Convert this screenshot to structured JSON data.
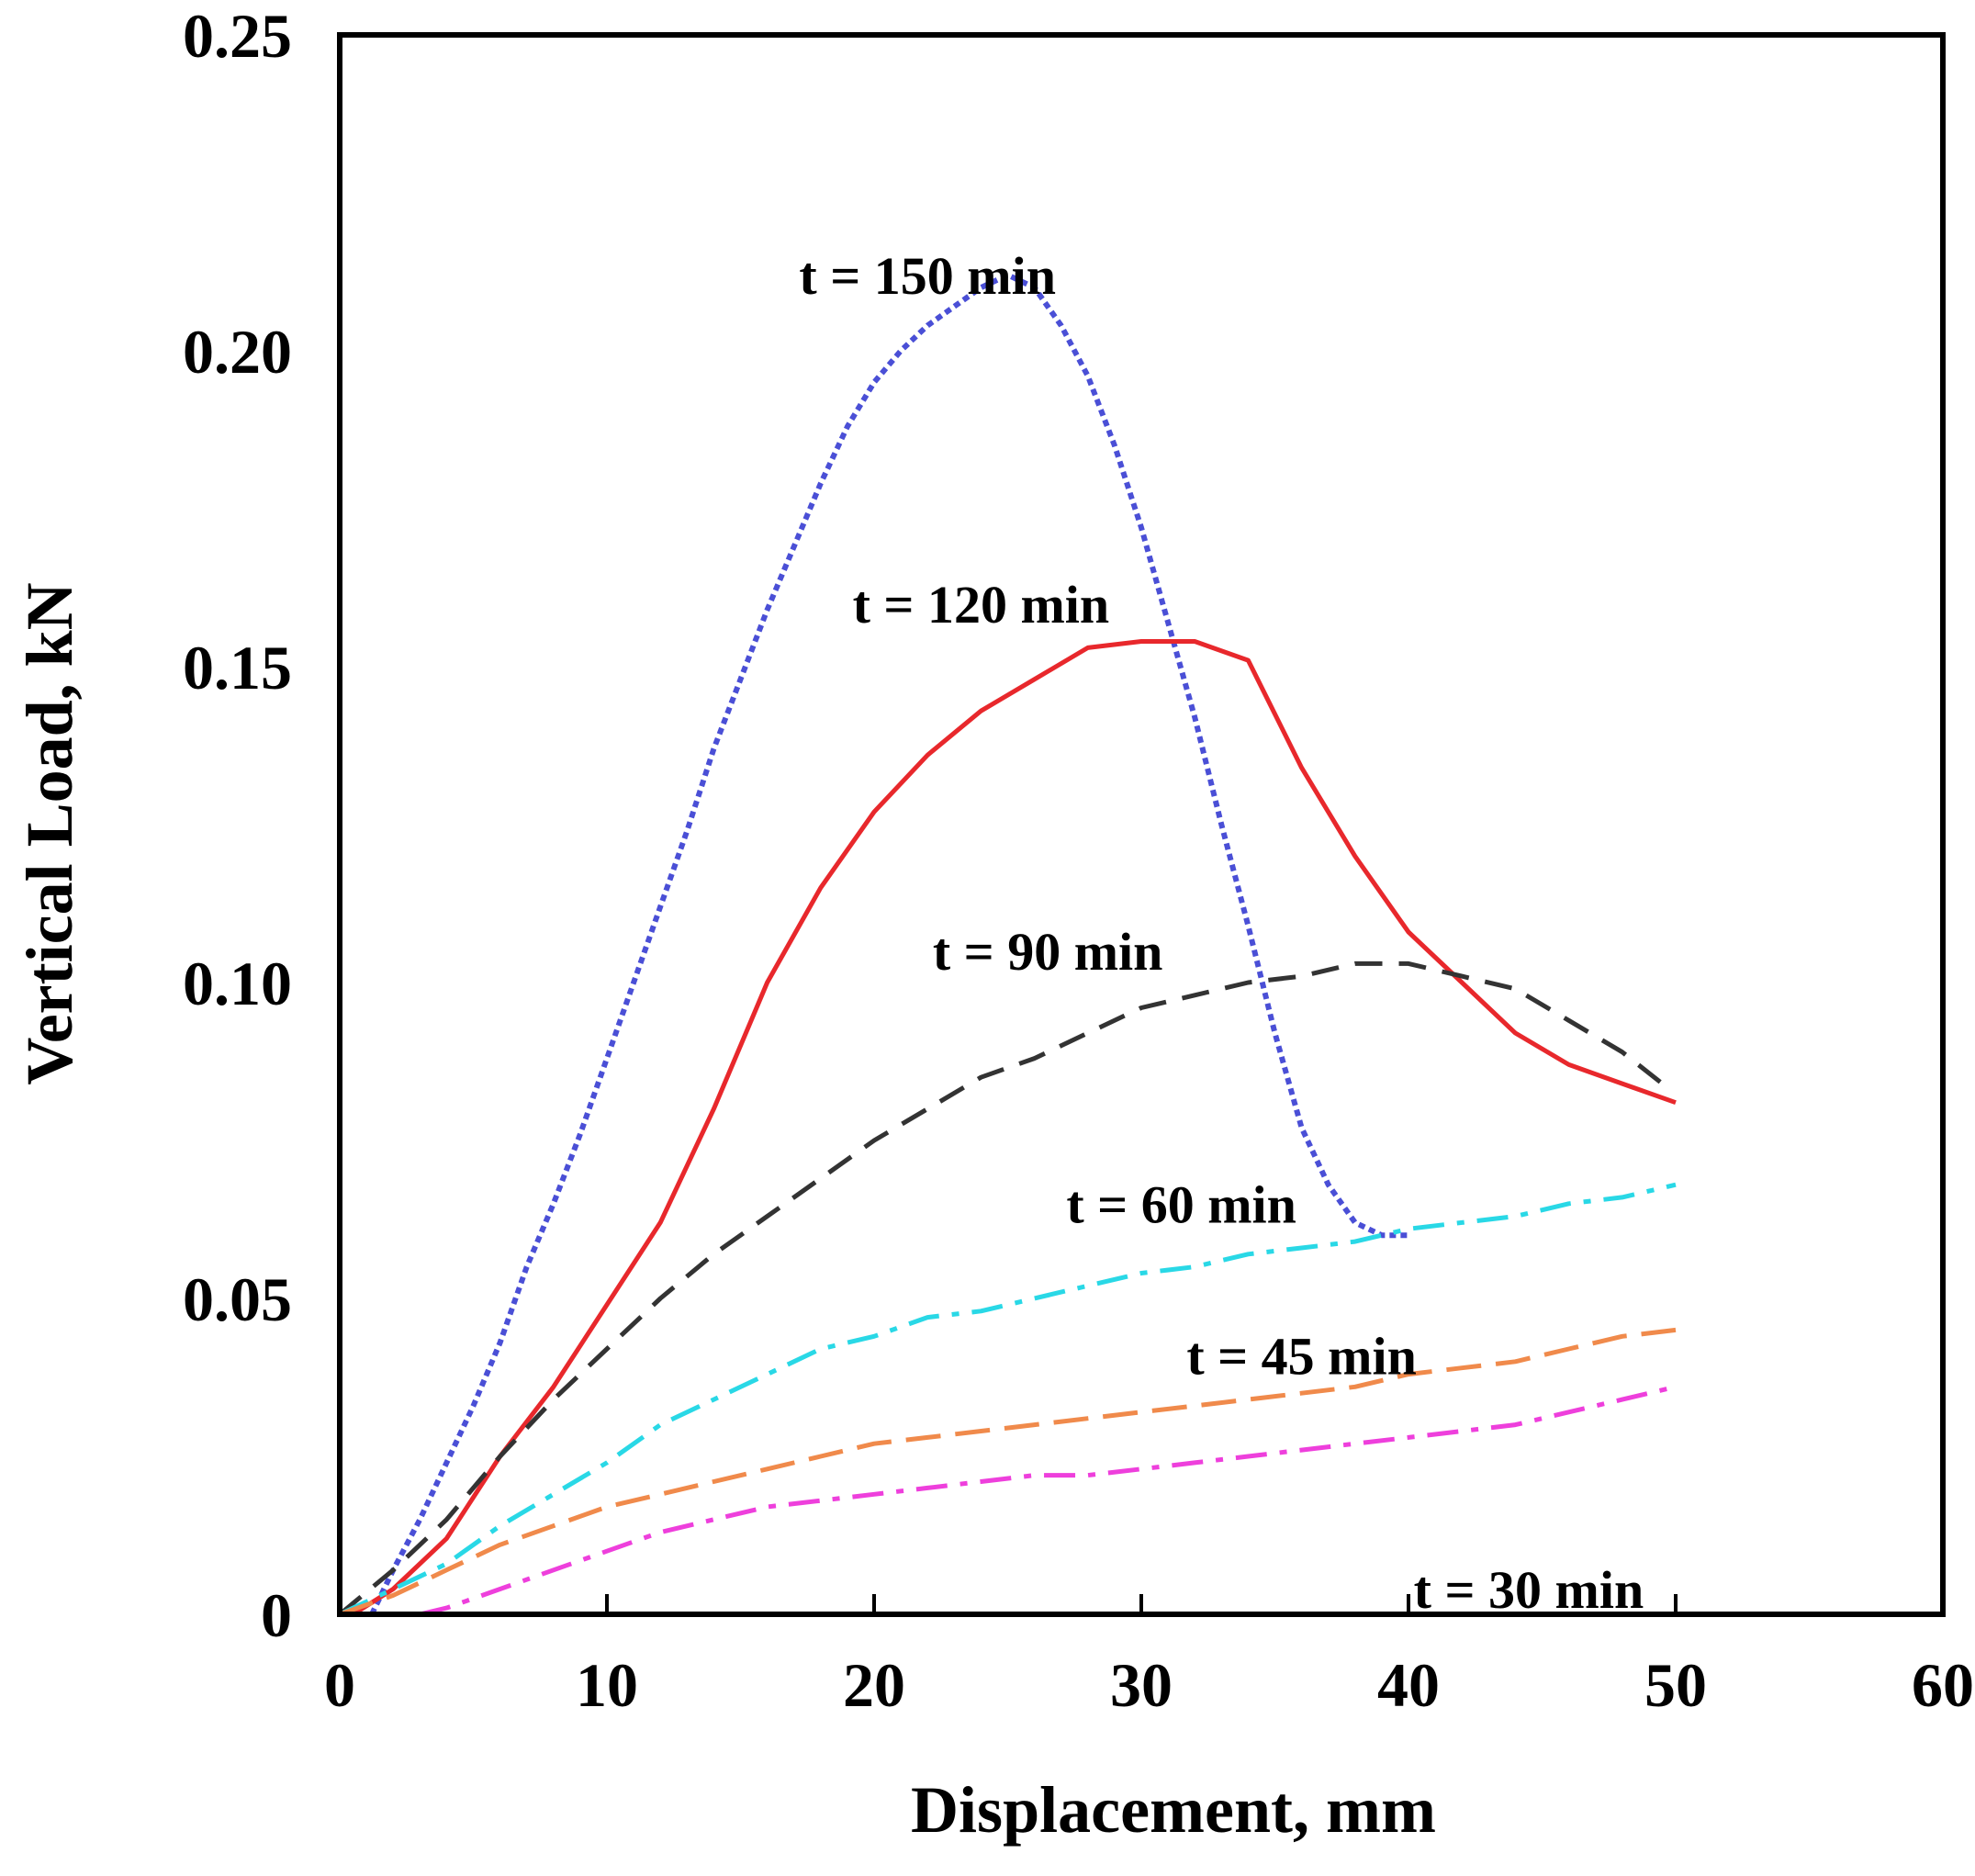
{
  "chart_data": {
    "type": "line",
    "title": "",
    "xlabel": "Displacement, mm",
    "ylabel": "Vertical Load, kN",
    "xlim": [
      0,
      60
    ],
    "ylim": [
      0,
      0.25
    ],
    "xticks": [
      0,
      10,
      20,
      30,
      40,
      50,
      60
    ],
    "xtick_labels": [
      "0",
      "10",
      "20",
      "30",
      "40",
      "50",
      "60"
    ],
    "yticks": [
      0,
      0.05,
      0.1,
      0.15,
      0.2,
      0.25
    ],
    "ytick_labels": [
      "0",
      "0.05",
      "0.10",
      "0.15",
      "0.20",
      "0.25"
    ],
    "grid": false,
    "legend": "inline labels",
    "series": [
      {
        "name": "t = 150 min",
        "color": "#4a4fd6",
        "style": "dotted",
        "label_at": [
          22,
          0.209
        ],
        "x": [
          1.2,
          2,
          3,
          4,
          5,
          6,
          7,
          8,
          9,
          10,
          11,
          12,
          13,
          14,
          15,
          16,
          17,
          18,
          19,
          20,
          21,
          22,
          23,
          24,
          25,
          26,
          27,
          28,
          29,
          30,
          31,
          32,
          33,
          34,
          35,
          36,
          37,
          38,
          39,
          40
        ],
        "y": [
          0.0,
          0.007,
          0.015,
          0.024,
          0.033,
          0.043,
          0.055,
          0.065,
          0.076,
          0.088,
          0.1,
          0.112,
          0.124,
          0.137,
          0.148,
          0.159,
          0.169,
          0.179,
          0.188,
          0.195,
          0.2,
          0.204,
          0.207,
          0.21,
          0.212,
          0.21,
          0.204,
          0.196,
          0.185,
          0.172,
          0.157,
          0.142,
          0.125,
          0.109,
          0.092,
          0.077,
          0.068,
          0.062,
          0.06,
          0.06
        ]
      },
      {
        "name": "t = 120 min",
        "color": "#e8282c",
        "style": "solid",
        "label_at": [
          24,
          0.157
        ],
        "x": [
          0.5,
          2,
          4,
          6,
          8,
          10,
          12,
          14,
          16,
          18,
          20,
          22,
          24,
          26,
          28,
          30,
          32,
          34,
          36,
          38,
          40,
          42,
          44,
          46,
          48,
          50
        ],
        "y": [
          0.0,
          0.004,
          0.012,
          0.025,
          0.036,
          0.049,
          0.062,
          0.08,
          0.1,
          0.115,
          0.127,
          0.136,
          0.143,
          0.148,
          0.153,
          0.154,
          0.154,
          0.151,
          0.134,
          0.12,
          0.108,
          0.1,
          0.092,
          0.087,
          0.084,
          0.081
        ]
      },
      {
        "name": "t = 90 min",
        "color": "#333333",
        "style": "dashed",
        "label_at": [
          26.5,
          0.102
        ],
        "x": [
          0,
          2,
          4,
          6,
          8,
          10,
          12,
          14,
          16,
          18,
          20,
          22,
          24,
          26,
          28,
          30,
          32,
          34,
          36,
          38,
          40,
          42,
          44,
          46,
          48,
          49.5
        ],
        "y": [
          0.0,
          0.007,
          0.015,
          0.025,
          0.034,
          0.042,
          0.05,
          0.057,
          0.063,
          0.069,
          0.075,
          0.08,
          0.085,
          0.088,
          0.092,
          0.096,
          0.098,
          0.1,
          0.101,
          0.103,
          0.103,
          0.101,
          0.099,
          0.094,
          0.089,
          0.084
        ]
      },
      {
        "name": "t = 60 min",
        "color": "#29d8e6",
        "style": "dash-dot",
        "label_at": [
          31.5,
          0.062
        ],
        "x": [
          0,
          2,
          4,
          6,
          8,
          10,
          12,
          14,
          16,
          18,
          20,
          22,
          24,
          26,
          28,
          30,
          32,
          34,
          36,
          38,
          40,
          42,
          44,
          46,
          48,
          50
        ],
        "y": [
          0.0,
          0.004,
          0.008,
          0.014,
          0.019,
          0.024,
          0.03,
          0.034,
          0.038,
          0.042,
          0.044,
          0.047,
          0.048,
          0.05,
          0.052,
          0.054,
          0.055,
          0.057,
          0.058,
          0.059,
          0.061,
          0.062,
          0.063,
          0.065,
          0.066,
          0.068
        ]
      },
      {
        "name": "t = 45 min",
        "color": "#f08a4b",
        "style": "long-dash",
        "label_at": [
          36,
          0.038
        ],
        "x": [
          0,
          2,
          4,
          6,
          8,
          10,
          12,
          14,
          16,
          18,
          20,
          22,
          24,
          26,
          28,
          30,
          32,
          34,
          36,
          38,
          40,
          42,
          44,
          46,
          48,
          50
        ],
        "y": [
          0.0,
          0.003,
          0.007,
          0.011,
          0.014,
          0.017,
          0.019,
          0.021,
          0.023,
          0.025,
          0.027,
          0.028,
          0.029,
          0.03,
          0.031,
          0.032,
          0.033,
          0.034,
          0.035,
          0.036,
          0.038,
          0.039,
          0.04,
          0.042,
          0.044,
          0.045
        ]
      },
      {
        "name": "t = 30 min",
        "color": "#ee3fdc",
        "style": "dash-dot",
        "label_at": [
          44.5,
          0.001
        ],
        "x": [
          3,
          4,
          6,
          8,
          10,
          12,
          14,
          16,
          18,
          20,
          22,
          24,
          26,
          28,
          30,
          32,
          34,
          36,
          38,
          40,
          42,
          44,
          46,
          48,
          50
        ],
        "y": [
          0.0,
          0.001,
          0.004,
          0.007,
          0.01,
          0.013,
          0.015,
          0.017,
          0.018,
          0.019,
          0.02,
          0.021,
          0.022,
          0.022,
          0.023,
          0.024,
          0.025,
          0.026,
          0.027,
          0.028,
          0.029,
          0.03,
          0.032,
          0.034,
          0.036
        ]
      }
    ]
  }
}
